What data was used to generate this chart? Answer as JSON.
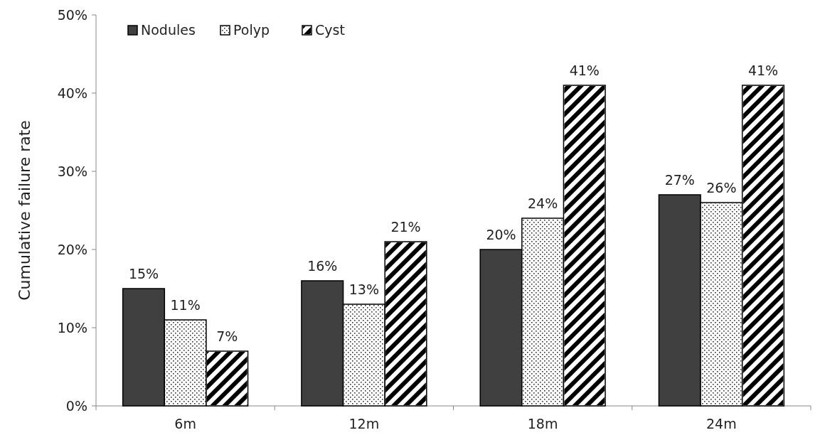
{
  "chart_data": {
    "type": "bar",
    "ylabel": "Cumulative failure rate",
    "categories": [
      "6m",
      "12m",
      "18m",
      "24m"
    ],
    "series": [
      {
        "name": "Nodules",
        "color": "#404040",
        "values": [
          15,
          16,
          20,
          27
        ],
        "value_labels": [
          "15%",
          "16%",
          "20%",
          "27%"
        ]
      },
      {
        "name": "Polyp",
        "color": "#ffffff",
        "values": [
          11,
          13,
          24,
          26
        ],
        "value_labels": [
          "11%",
          "13%",
          "24%",
          "26%"
        ]
      },
      {
        "name": "Cyst",
        "color": "#ffffff",
        "values": [
          7,
          21,
          41,
          41
        ],
        "value_labels": [
          "7%",
          "21%",
          "41%",
          "41%"
        ]
      }
    ],
    "ylim": [
      0,
      50
    ],
    "yticks": [
      {
        "value": 0,
        "label": "0%"
      },
      {
        "value": 10,
        "label": "10%"
      },
      {
        "value": 20,
        "label": "20%"
      },
      {
        "value": 30,
        "label": "30%"
      },
      {
        "value": 40,
        "label": "40%"
      },
      {
        "value": 50,
        "label": "50%"
      }
    ],
    "grid": false,
    "legend": "top left"
  }
}
